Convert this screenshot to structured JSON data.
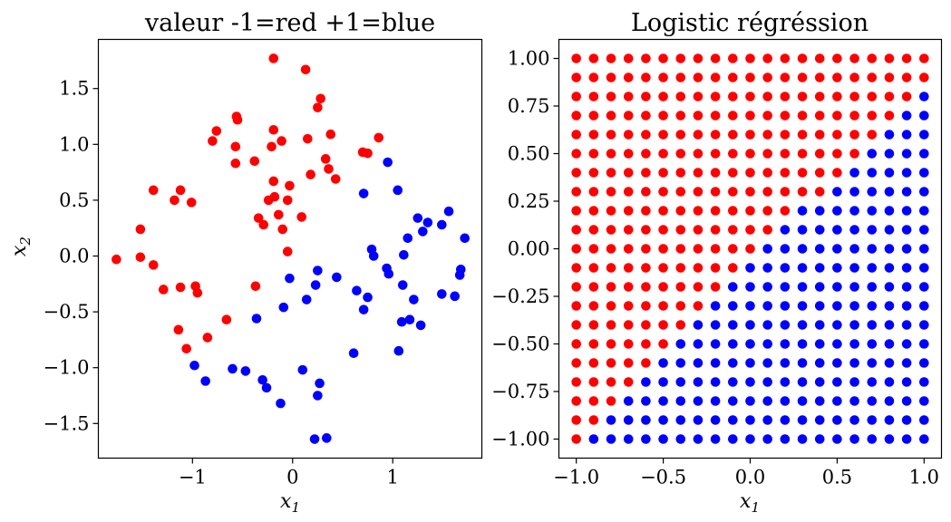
{
  "chart_data": [
    {
      "type": "scatter",
      "title": "valeur -1=red +1=blue",
      "xlabel": "x_1",
      "ylabel": "x_2",
      "xlim": [
        -1.94,
        1.89
      ],
      "ylim": [
        -1.81,
        1.94
      ],
      "xticks": [
        -1,
        0,
        1
      ],
      "xtick_labels": [
        "−1",
        "0",
        "1"
      ],
      "yticks": [
        -1.5,
        -1.0,
        -0.5,
        0.0,
        0.5,
        1.0,
        1.5
      ],
      "ytick_labels": [
        "−1.5",
        "−1.0",
        "−0.5",
        "0.0",
        "0.5",
        "1.0",
        "1.5"
      ],
      "grid": false,
      "series": [
        {
          "label": -1,
          "color": "#ff0000",
          "points": [
            [
              -0.19,
              1.77
            ],
            [
              -0.56,
              1.25
            ],
            [
              -0.55,
              1.22
            ],
            [
              -0.76,
              1.12
            ],
            [
              -0.8,
              1.03
            ],
            [
              -0.19,
              1.13
            ],
            [
              -0.11,
              1.03
            ],
            [
              -0.21,
              0.98
            ],
            [
              -0.57,
              0.98
            ],
            [
              -0.57,
              0.83
            ],
            [
              -0.38,
              0.85
            ],
            [
              -0.19,
              0.67
            ],
            [
              -0.03,
              0.63
            ],
            [
              -1.39,
              0.59
            ],
            [
              -1.12,
              0.59
            ],
            [
              -1.18,
              0.5
            ],
            [
              -1.01,
              0.48
            ],
            [
              -0.24,
              0.5
            ],
            [
              -0.18,
              0.53
            ],
            [
              -0.05,
              0.5
            ],
            [
              -0.14,
              0.37
            ],
            [
              -0.34,
              0.34
            ],
            [
              -0.29,
              0.28
            ],
            [
              -0.1,
              0.24
            ],
            [
              -1.52,
              0.24
            ],
            [
              -0.05,
              0.04
            ],
            [
              -1.76,
              -0.03
            ],
            [
              -1.52,
              -0.01
            ],
            [
              0.13,
              1.67
            ],
            [
              0.28,
              1.41
            ],
            [
              0.25,
              1.33
            ],
            [
              0.38,
              1.09
            ],
            [
              0.15,
              1.05
            ],
            [
              0.86,
              1.06
            ],
            [
              0.7,
              0.93
            ],
            [
              0.75,
              0.92
            ],
            [
              0.33,
              0.87
            ],
            [
              0.36,
              0.78
            ],
            [
              0.18,
              0.73
            ],
            [
              0.43,
              0.69
            ],
            [
              0.09,
              0.35
            ],
            [
              -1.39,
              -0.08
            ],
            [
              -1.29,
              -0.3
            ],
            [
              -1.12,
              -0.28
            ],
            [
              -0.97,
              -0.27
            ],
            [
              -0.95,
              -0.33
            ],
            [
              -0.37,
              -0.27
            ],
            [
              -0.66,
              -0.57
            ],
            [
              -1.14,
              -0.66
            ],
            [
              -0.85,
              -0.73
            ],
            [
              -1.06,
              -0.83
            ]
          ]
        },
        {
          "label": 1,
          "color": "#0000ff",
          "points": [
            [
              0.95,
              0.84
            ],
            [
              0.71,
              0.56
            ],
            [
              1.05,
              0.59
            ],
            [
              1.56,
              0.4
            ],
            [
              1.25,
              0.34
            ],
            [
              1.35,
              0.3
            ],
            [
              1.49,
              0.28
            ],
            [
              1.3,
              0.22
            ],
            [
              1.15,
              0.16
            ],
            [
              1.72,
              0.16
            ],
            [
              0.79,
              0.06
            ],
            [
              0.81,
              0.0
            ],
            [
              1.11,
              0.01
            ],
            [
              -0.03,
              -0.2
            ],
            [
              -0.09,
              -0.46
            ],
            [
              -0.36,
              -0.56
            ],
            [
              -0.98,
              -0.98
            ],
            [
              -0.87,
              -1.12
            ],
            [
              -0.6,
              -1.01
            ],
            [
              -0.47,
              -1.03
            ],
            [
              -0.3,
              -1.11
            ],
            [
              -0.26,
              -1.18
            ],
            [
              -0.12,
              -1.32
            ],
            [
              0.25,
              -0.13
            ],
            [
              0.44,
              -0.19
            ],
            [
              0.23,
              -0.26
            ],
            [
              0.14,
              -0.39
            ],
            [
              0.64,
              -0.31
            ],
            [
              0.75,
              -0.37
            ],
            [
              0.71,
              -0.48
            ],
            [
              0.94,
              -0.11
            ],
            [
              0.96,
              -0.16
            ],
            [
              1.1,
              -0.26
            ],
            [
              1.21,
              -0.39
            ],
            [
              1.09,
              -0.59
            ],
            [
              1.17,
              -0.57
            ],
            [
              1.28,
              -0.62
            ],
            [
              1.49,
              -0.34
            ],
            [
              1.62,
              -0.36
            ],
            [
              1.68,
              -0.12
            ],
            [
              1.67,
              -0.17
            ],
            [
              0.61,
              -0.87
            ],
            [
              1.06,
              -0.85
            ],
            [
              0.1,
              -1.02
            ],
            [
              0.27,
              -1.14
            ],
            [
              0.25,
              -1.25
            ],
            [
              0.22,
              -1.64
            ],
            [
              0.34,
              -1.63
            ]
          ]
        }
      ]
    },
    {
      "type": "scatter",
      "title": "Logistic régréssion",
      "xlabel": "x_1",
      "ylabel": "",
      "xlim": [
        -1.1,
        1.1
      ],
      "ylim": [
        -1.1,
        1.1
      ],
      "xticks": [
        -1.0,
        -0.5,
        0.0,
        0.5,
        1.0
      ],
      "xtick_labels": [
        "−1.0",
        "−0.5",
        "0.0",
        "0.5",
        "1.0"
      ],
      "yticks": [
        -1.0,
        -0.75,
        -0.5,
        -0.25,
        0.0,
        0.25,
        0.5,
        0.75,
        1.0
      ],
      "ytick_labels": [
        "−1.00",
        "−0.75",
        "−0.50",
        "−0.25",
        "0.00",
        "0.25",
        "0.50",
        "0.75",
        "1.00"
      ],
      "grid": false,
      "colors": {
        "r": "#ff0000",
        "b": "#0000ff"
      },
      "grid_x": [
        -1.0,
        -0.9,
        -0.8,
        -0.7,
        -0.6,
        -0.5,
        -0.4,
        -0.3,
        -0.2,
        -0.1,
        0.0,
        0.1,
        0.2,
        0.3,
        0.4,
        0.5,
        0.6,
        0.7,
        0.8,
        0.9,
        1.0
      ],
      "grid_y": [
        1.0,
        0.9,
        0.8,
        0.7,
        0.6,
        0.5,
        0.4,
        0.3,
        0.2,
        0.1,
        0.0,
        -0.1,
        -0.2,
        -0.3,
        -0.4,
        -0.5,
        -0.6,
        -0.7,
        -0.8,
        -0.9,
        -1.0
      ],
      "predictions": [
        "rrrrrrrrrrrrrrrrrrrrr",
        "rrrrrrrrrrrrrrrrrrrrr",
        "rrrrrrrrrrrrrrrrrrrrb",
        "rrrrrrrrrrrrrrrrrrrbb",
        "rrrrrrrrrrrrrrrrrrbbb",
        "rrrrrrrrrrrrrrrrrbbbb",
        "rrrrrrrrrrrrrrrrbbbbb",
        "rrrrrrrrrrrrrrrbbbbbb",
        "rrrrrrrrrrrrrbbbbbbbb",
        "rrrrrrrrrrrrbbbbbbbbb",
        "rrrrrrrrrrrbbbbbbbbbb",
        "rrrrrrrrrrbbbbbbbbbbb",
        "rrrrrrrrrbbbbbbbbbbbb",
        "rrrrrrrrbbbbbbbbbbbbb",
        "rrrrrrrbbbbbbbbbbbbbb",
        "rrrrrrbbbbbbbbbbbbbbb",
        "rrrrrbbbbbbbbbbbbbbbb",
        "rrrrbbbbbbbbbbbbbbbbb",
        "rrrbbbbbbbbbbbbbbbbbb",
        "rrbbbbbbbbbbbbbbbbbbb",
        "rbbbbbbbbbbbbbbbbbbbb"
      ]
    }
  ]
}
